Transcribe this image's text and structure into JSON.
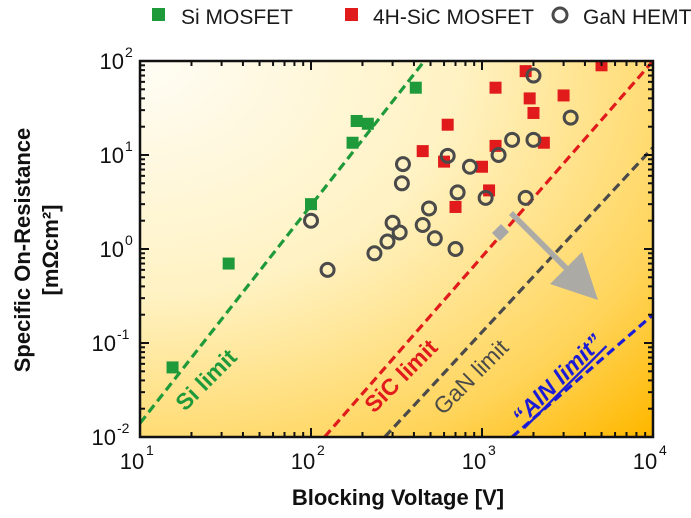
{
  "chart_data": {
    "type": "scatter",
    "title": "",
    "x_scale": "log",
    "y_scale": "log",
    "xlim": [
      10,
      10000
    ],
    "ylim": [
      0.01,
      100
    ],
    "xlabel": "Blocking Voltage [V]",
    "ylabel_line1": "Specific On-Resistance",
    "ylabel_line2": "[mΩcm²]",
    "x_ticks": [
      {
        "base": "10",
        "exp": "1",
        "value": 10
      },
      {
        "base": "10",
        "exp": "2",
        "value": 100
      },
      {
        "base": "10",
        "exp": "3",
        "value": 1000
      },
      {
        "base": "10",
        "exp": "4",
        "value": 10000
      }
    ],
    "y_ticks": [
      {
        "base": "10",
        "exp": "-2",
        "value": 0.01
      },
      {
        "base": "10",
        "exp": "-1",
        "value": 0.1
      },
      {
        "base": "10",
        "exp": "0",
        "value": 1
      },
      {
        "base": "10",
        "exp": "1",
        "value": 10
      },
      {
        "base": "10",
        "exp": "2",
        "value": 100
      }
    ],
    "legend_position": "top",
    "series": [
      {
        "name": "Si MOSFET",
        "marker": "filled-square",
        "color": "#1f9a3a",
        "points": [
          {
            "x": 15.5,
            "y": 0.055
          },
          {
            "x": 33,
            "y": 0.7
          },
          {
            "x": 100,
            "y": 3.0
          },
          {
            "x": 175,
            "y": 13.5
          },
          {
            "x": 185,
            "y": 23
          },
          {
            "x": 215,
            "y": 21.5
          },
          {
            "x": 410,
            "y": 52
          }
        ]
      },
      {
        "name": "4H-SiC MOSFET",
        "marker": "filled-square",
        "color": "#e11b1b",
        "points": [
          {
            "x": 450,
            "y": 11
          },
          {
            "x": 600,
            "y": 8.5
          },
          {
            "x": 630,
            "y": 21
          },
          {
            "x": 700,
            "y": 2.8
          },
          {
            "x": 1000,
            "y": 7.5
          },
          {
            "x": 1100,
            "y": 4.2
          },
          {
            "x": 1200,
            "y": 12.5
          },
          {
            "x": 1200,
            "y": 52
          },
          {
            "x": 1800,
            "y": 78
          },
          {
            "x": 1900,
            "y": 40
          },
          {
            "x": 2000,
            "y": 28
          },
          {
            "x": 2300,
            "y": 13.5
          },
          {
            "x": 3000,
            "y": 43
          },
          {
            "x": 5000,
            "y": 90
          }
        ]
      },
      {
        "name": "GaN HEMT",
        "marker": "open-circle",
        "color": "#4a4a4a",
        "points": [
          {
            "x": 100,
            "y": 2.0
          },
          {
            "x": 125,
            "y": 0.6
          },
          {
            "x": 235,
            "y": 0.9
          },
          {
            "x": 280,
            "y": 1.2
          },
          {
            "x": 300,
            "y": 1.9
          },
          {
            "x": 330,
            "y": 1.5
          },
          {
            "x": 340,
            "y": 5.0
          },
          {
            "x": 345,
            "y": 8.0
          },
          {
            "x": 450,
            "y": 1.8
          },
          {
            "x": 490,
            "y": 2.7
          },
          {
            "x": 530,
            "y": 1.3
          },
          {
            "x": 630,
            "y": 9.8
          },
          {
            "x": 700,
            "y": 1.0
          },
          {
            "x": 720,
            "y": 4.0
          },
          {
            "x": 850,
            "y": 7.5
          },
          {
            "x": 1050,
            "y": 3.5
          },
          {
            "x": 1250,
            "y": 10
          },
          {
            "x": 1500,
            "y": 14.5
          },
          {
            "x": 1800,
            "y": 3.5
          },
          {
            "x": 2000,
            "y": 14.5
          },
          {
            "x": 2000,
            "y": 70
          },
          {
            "x": 3300,
            "y": 25
          }
        ]
      }
    ],
    "limit_lines": [
      {
        "name": "Si limit",
        "label": "Si limit",
        "color": "#1f9a3a",
        "from": {
          "x": 10,
          "y": 0.014
        },
        "to": {
          "x": 460,
          "y": 100
        }
      },
      {
        "name": "SiC limit",
        "label": "SiC limit",
        "color": "#e11b1b",
        "from": {
          "x": 120,
          "y": 0.01
        },
        "to": {
          "x": 10000,
          "y": 100
        }
      },
      {
        "name": "GaN limit",
        "label": "GaN limit",
        "color": "#4a4a4a",
        "from": {
          "x": 270,
          "y": 0.01
        },
        "to": {
          "x": 10000,
          "y": 12
        }
      },
      {
        "name": "AlN limit",
        "label": "“AlN limit”",
        "color": "#1c1cd6",
        "from": {
          "x": 1500,
          "y": 0.01
        },
        "to": {
          "x": 10000,
          "y": 0.2
        }
      }
    ]
  }
}
